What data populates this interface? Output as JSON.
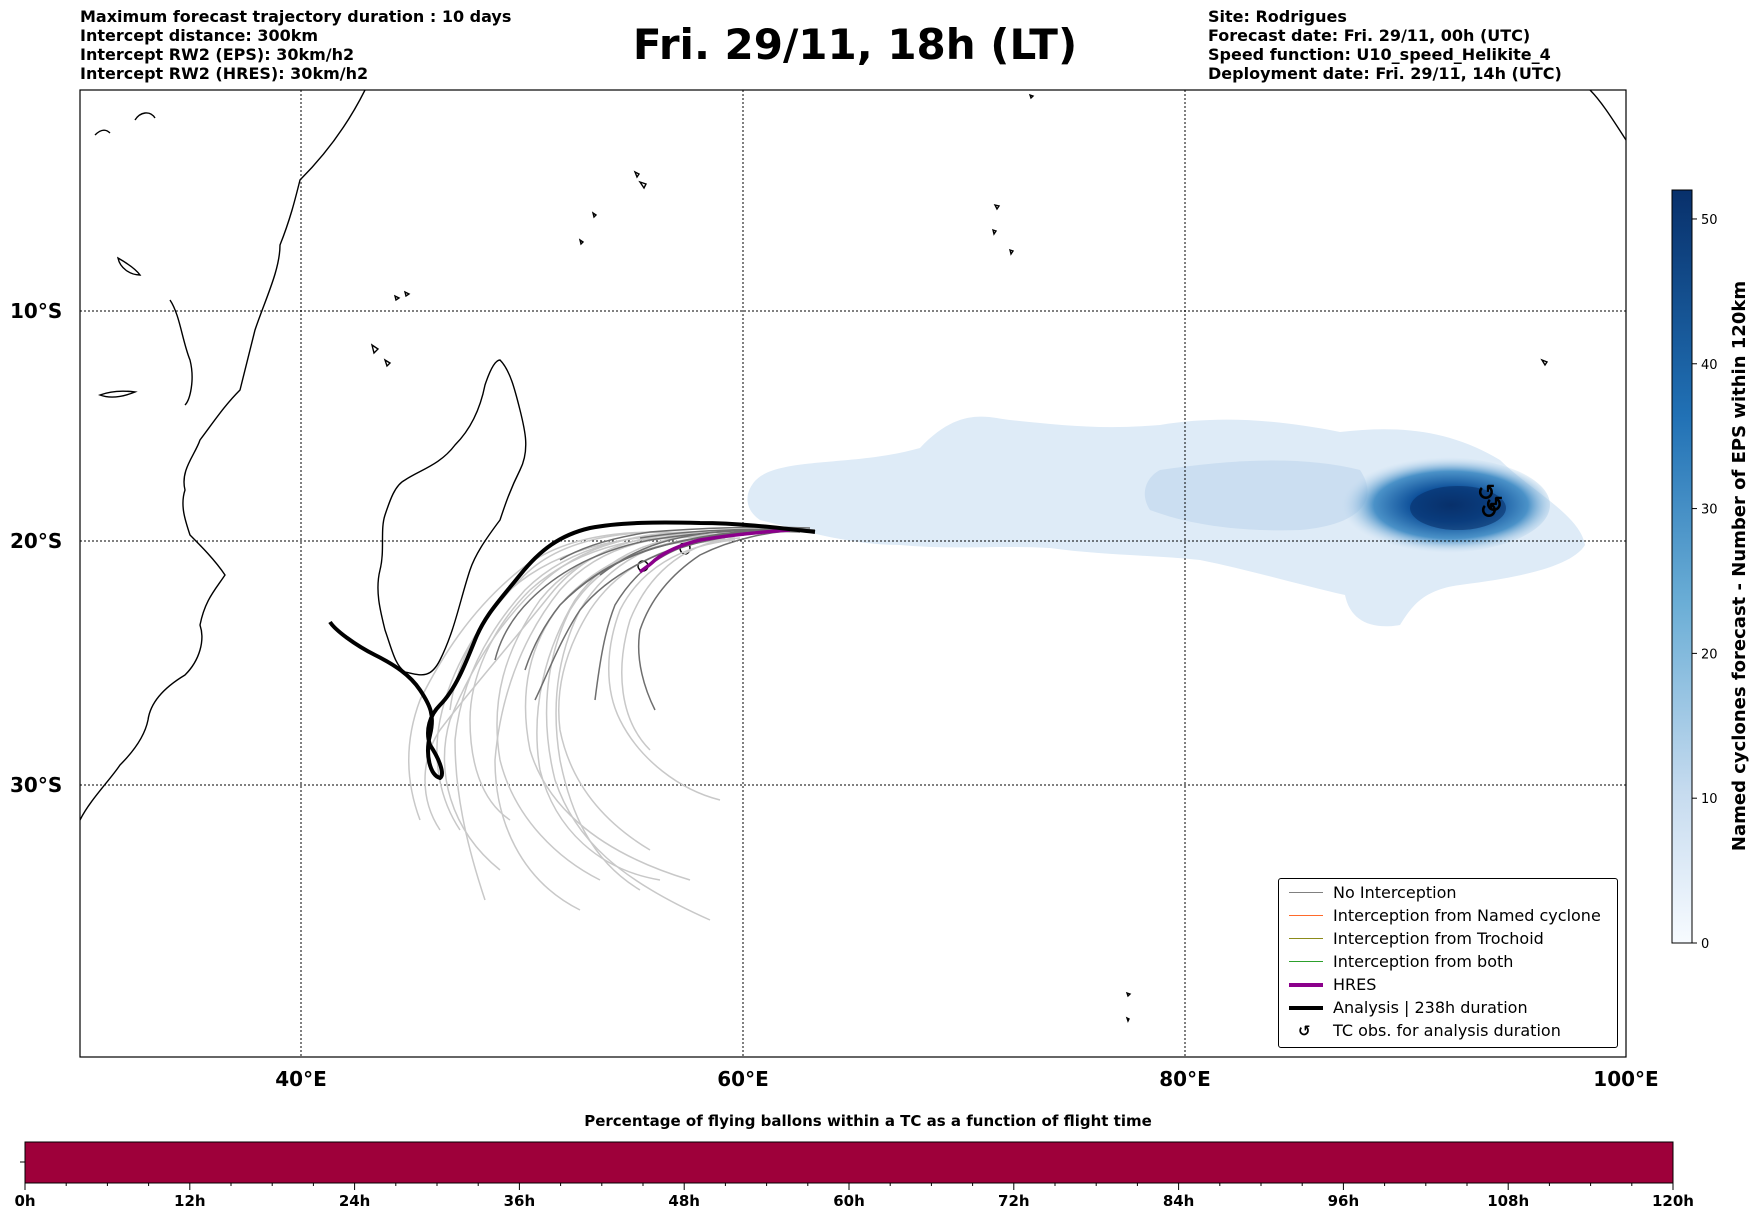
{
  "header_left": [
    "Maximum forecast trajectory duration : 10 days",
    "Intercept distance: 300km",
    "Intercept RW2 (EPS):  30km/h2",
    "Intercept RW2 (HRES): 30km/h2"
  ],
  "title": "Fri. 29/11, 18h (LT)",
  "header_right": [
    "Site: Rodrigues",
    "Forecast date: Fri. 29/11, 00h (UTC)",
    "Speed function: U10_speed_Helikite_4",
    "Deployment date: Fri. 29/11, 14h (UTC)"
  ],
  "map": {
    "lat_labels": [
      "10°S",
      "20°S",
      "30°S"
    ],
    "lon_labels": [
      "40°E",
      "60°E",
      "80°E",
      "100°E"
    ],
    "lat_grid": [
      -10,
      -20,
      -30
    ],
    "lon_grid": [
      40,
      60,
      80
    ],
    "extent": {
      "lon_min": 30,
      "lon_max": 100,
      "lat_min": -42,
      "lat_max": -0.5
    }
  },
  "colorbar": {
    "label": "Named cyclones forecast - Number of EPS within 120km",
    "ticks": [
      "0",
      "10",
      "20",
      "30",
      "40",
      "50"
    ],
    "max": 52,
    "colors": [
      "#f7fbff",
      "#08306b"
    ]
  },
  "legend": {
    "items": [
      {
        "label": "No Interception",
        "color": "#808080",
        "kind": "line"
      },
      {
        "label": "Interception from Named cyclone",
        "color": "#ff6a2b",
        "kind": "line"
      },
      {
        "label": "Interception from Trochoid",
        "color": "#8b8b1a",
        "kind": "line"
      },
      {
        "label": "Interception from both",
        "color": "#2ca02c",
        "kind": "line"
      },
      {
        "label": "HRES",
        "color": "#8b008b",
        "kind": "thick"
      },
      {
        "label": "Analysis | 238h duration",
        "color": "#000000",
        "kind": "thick"
      },
      {
        "label": "TC obs. for analysis duration",
        "color": "#000000",
        "kind": "glyph",
        "glyph": "↺"
      }
    ]
  },
  "timebar": {
    "title": "Percentage of flying ballons within a TC as a function of flight time",
    "color": "#9e003a",
    "labels": [
      "0h",
      "12h",
      "24h",
      "36h",
      "48h",
      "60h",
      "72h",
      "84h",
      "96h",
      "108h",
      "120h"
    ]
  }
}
